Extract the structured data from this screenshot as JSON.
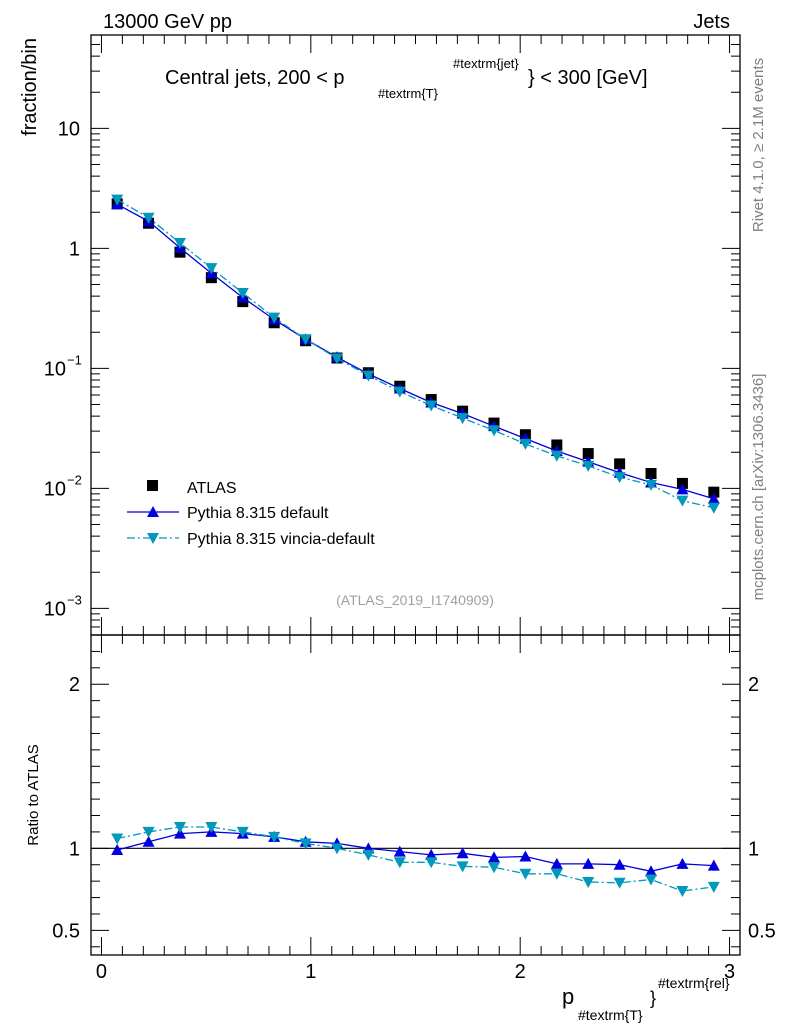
{
  "header": {
    "left": "13000 GeV pp",
    "right": "Jets"
  },
  "side_labels": {
    "version": "Rivet 4.1.0, ≥ 2.1M events",
    "source": "mcplots.cern.ch [arXiv:1306.3436]"
  },
  "chart_data": [
    {
      "type": "line",
      "title": "Central jets, 200 < p_{#textrm{T}}^{#textrm{jet}} < 300 [GeV]",
      "title_parts": {
        "pre": "Central jets, 200 < p",
        "sub": "#textrm{T}",
        "sup": "#textrm{jet}",
        "post": "} < 300 [GeV]"
      },
      "ylabel": "fraction/bin",
      "yscale": "log",
      "ylim": [
        0.0006,
        60
      ],
      "xlim": [
        -0.05,
        3.05
      ],
      "y_ticks": [
        {
          "value": 10,
          "label": "10"
        },
        {
          "value": 1,
          "label": "1"
        },
        {
          "value": 0.1,
          "label": "10^{-1}",
          "base": "10",
          "exp": "−1"
        },
        {
          "value": 0.01,
          "label": "10^{-2}",
          "base": "10",
          "exp": "−2"
        },
        {
          "value": 0.001,
          "label": "10^{-3}",
          "base": "10",
          "exp": "−3"
        }
      ],
      "watermark": "(ATLAS_2019_I1740909)",
      "legend": [
        "ATLAS",
        "Pythia 8.315 default",
        "Pythia 8.315 vincia-default"
      ],
      "legend_position": "bottom-left",
      "x": [
        0.075,
        0.225,
        0.375,
        0.525,
        0.675,
        0.825,
        0.975,
        1.125,
        1.275,
        1.425,
        1.575,
        1.725,
        1.875,
        2.025,
        2.175,
        2.325,
        2.475,
        2.625,
        2.775,
        2.925
      ],
      "series": [
        {
          "name": "ATLAS",
          "values": [
            2.35,
            1.62,
            0.93,
            0.57,
            0.36,
            0.24,
            0.17,
            0.122,
            0.092,
            0.071,
            0.055,
            0.044,
            0.035,
            0.028,
            0.023,
            0.0195,
            0.016,
            0.0133,
            0.011,
            0.0093
          ],
          "color": "#000000",
          "marker": "square"
        },
        {
          "name": "Pythia 8.315 default",
          "values": [
            2.33,
            1.68,
            1.01,
            0.62,
            0.39,
            0.255,
            0.175,
            0.124,
            0.09,
            0.068,
            0.052,
            0.042,
            0.033,
            0.026,
            0.0205,
            0.0167,
            0.0135,
            0.0112,
            0.0098,
            0.0082
          ],
          "color": "#0000dd",
          "marker": "triangle-up",
          "dash": "solid"
        },
        {
          "name": "Pythia 8.315 vincia-default",
          "values": [
            2.55,
            1.8,
            1.11,
            0.685,
            0.425,
            0.265,
            0.175,
            0.121,
            0.087,
            0.064,
            0.049,
            0.0385,
            0.0304,
            0.0235,
            0.0187,
            0.0154,
            0.0124,
            0.0107,
            0.0079,
            0.0069
          ],
          "color": "#0099bb",
          "marker": "triangle-down",
          "dash": "dashdot"
        }
      ]
    },
    {
      "type": "line",
      "ylabel": "Ratio to ATLAS",
      "xlabel": "p_{#textrm{T}}^{#textrm{rel}}",
      "xlabel_parts": {
        "main": "p",
        "sub": "#textrm{T}",
        "sup": "#textrm{rel}",
        "close": "}"
      },
      "ylim": [
        0.35,
        2.3
      ],
      "xlim": [
        -0.05,
        3.05
      ],
      "y_ticks": [
        {
          "value": 2,
          "label": "2"
        },
        {
          "value": 1,
          "label": "1"
        },
        {
          "value": 0.5,
          "label": "0.5"
        }
      ],
      "x_ticks": [
        {
          "value": 0,
          "label": "0"
        },
        {
          "value": 1,
          "label": "1"
        },
        {
          "value": 2,
          "label": "2"
        },
        {
          "value": 3,
          "label": "3"
        }
      ],
      "reference_line": 1,
      "x": [
        0.075,
        0.225,
        0.375,
        0.525,
        0.675,
        0.825,
        0.975,
        1.125,
        1.275,
        1.425,
        1.575,
        1.725,
        1.875,
        2.025,
        2.175,
        2.325,
        2.475,
        2.625,
        2.775,
        2.925
      ],
      "series": [
        {
          "name": "Pythia 8.315 default",
          "values": [
            0.99,
            1.04,
            1.09,
            1.1,
            1.09,
            1.07,
            1.04,
            1.03,
            1.0,
            0.98,
            0.96,
            0.97,
            0.945,
            0.95,
            0.905,
            0.905,
            0.9,
            0.86,
            0.905,
            0.895
          ],
          "errors": [
            0.008,
            0.008,
            0.008,
            0.008,
            0.008,
            0.008,
            0.008,
            0.008,
            0.01,
            0.01,
            0.012,
            0.012,
            0.012,
            0.014,
            0.018,
            0.02,
            0.022,
            0.024,
            0.03,
            0.032
          ],
          "color": "#0000dd",
          "marker": "triangle-up",
          "dash": "solid"
        },
        {
          "name": "Pythia 8.315 vincia-default",
          "values": [
            1.06,
            1.1,
            1.13,
            1.13,
            1.1,
            1.07,
            1.03,
            1.0,
            0.96,
            0.915,
            0.915,
            0.89,
            0.885,
            0.845,
            0.845,
            0.795,
            0.79,
            0.81,
            0.74,
            0.765
          ],
          "errors": [
            0.008,
            0.008,
            0.008,
            0.008,
            0.008,
            0.008,
            0.008,
            0.008,
            0.01,
            0.01,
            0.012,
            0.012,
            0.012,
            0.014,
            0.018,
            0.02,
            0.022,
            0.024,
            0.03,
            0.032
          ],
          "color": "#0099bb",
          "marker": "triangle-down",
          "dash": "dashdot"
        }
      ]
    }
  ]
}
